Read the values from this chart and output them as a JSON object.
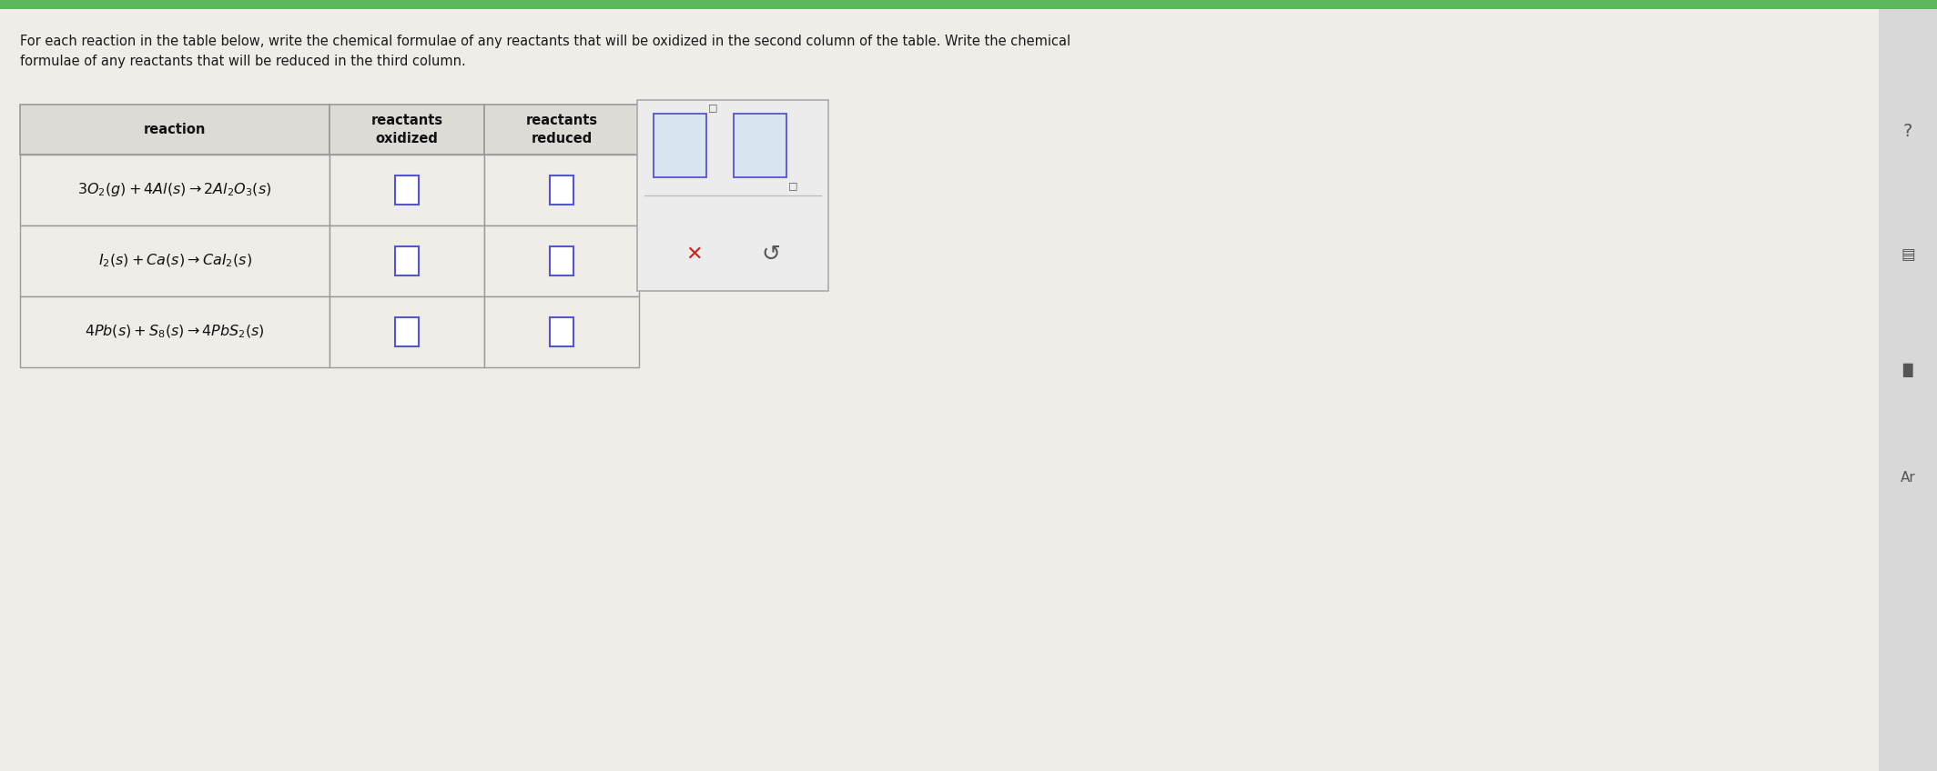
{
  "page_background": "#f0ede8",
  "header_text_line1": "For each reaction in the table below, write the chemical formulae of any reactants that will be oxidized in the second column of the table. Write the chemical",
  "header_text_line2": "formulae of any reactants that will be reduced in the third column.",
  "header_fontsize": 10.5,
  "col_headers": [
    "reaction",
    "reactants\noxidized",
    "reactants\nreduced"
  ],
  "reactions_mathtext": [
    "$3O_2(g) + 4Al(s) \\rightarrow 2Al_2O_3(s)$",
    "$I_2(s) + Ca(s) \\rightarrow CaI_2(s)$",
    "$4Pb(s) + S_8(s) \\rightarrow 4PbS_2(s)$"
  ],
  "table_header_bg": "#dddbd6",
  "table_row_bg": "#f0ede8",
  "table_border_color": "#999999",
  "input_box_fill": "#ffffff",
  "input_box_border": "#5555cc",
  "popup_bg": "#ececec",
  "popup_border": "#aaaaaa",
  "x_color": "#cc2222",
  "undo_color": "#555555",
  "green_bar_color": "#5cb85c",
  "sidebar_bg": "#d8d8d8",
  "sidebar_icon_color": "#555555"
}
